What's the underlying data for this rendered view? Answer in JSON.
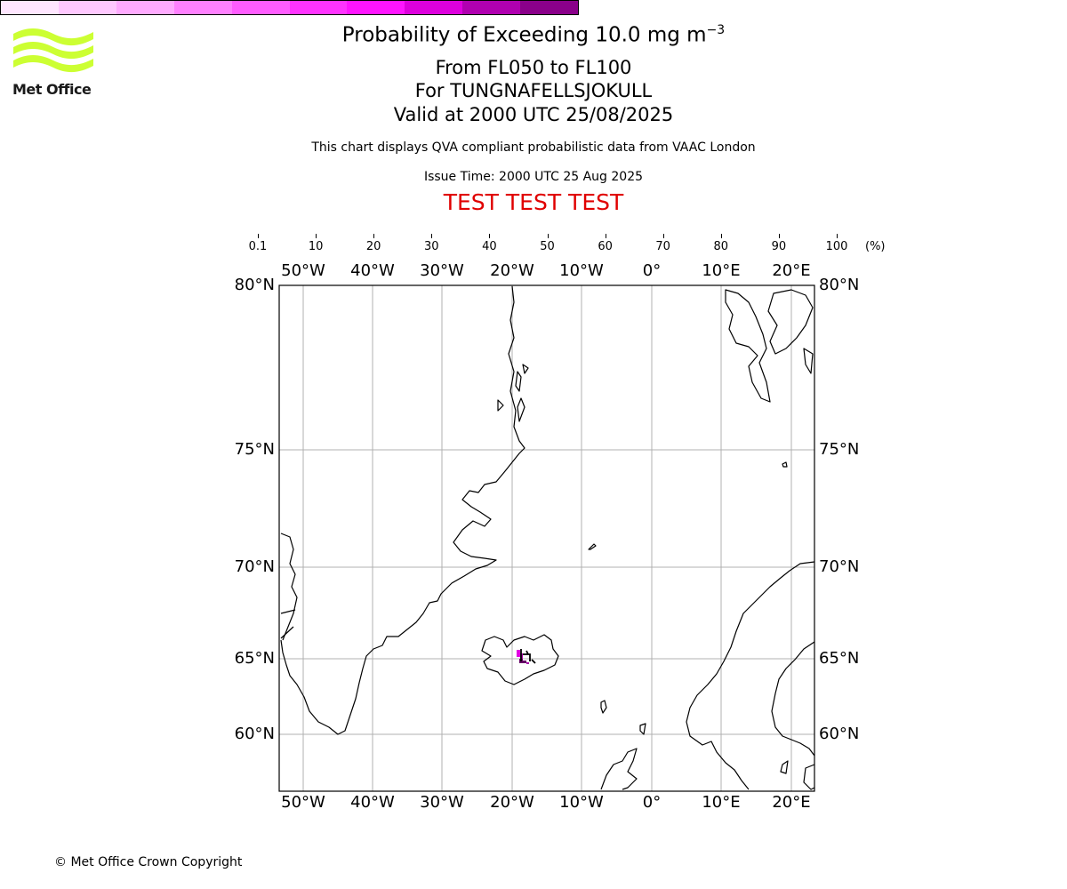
{
  "header": {
    "title_prefix": "Probability of Exceeding 10.0 mg m",
    "title_exponent": "−3",
    "levels": "From FL050 to FL100",
    "volcano": "For TUNGNAFELLSJOKULL",
    "valid": "Valid at 2000 UTC 25/08/2025",
    "subtitle": "This chart displays QVA compliant probabilistic data from VAAC London",
    "issue_time": "Issue Time: 2000 UTC 25 Aug 2025",
    "banner": "TEST TEST TEST"
  },
  "logo": {
    "text": "Met Office",
    "icon": "met-office-wave-logo",
    "color": "#ccff33"
  },
  "colorbar": {
    "labels": [
      "0.1",
      "10",
      "20",
      "30",
      "40",
      "50",
      "60",
      "70",
      "80",
      "90",
      "100"
    ],
    "unit": "(%)",
    "colors": [
      "#ffe6ff",
      "#ffc8ff",
      "#ffaaff",
      "#ff80ff",
      "#ff5cff",
      "#ff33ff",
      "#ff14ff",
      "#dd00dd",
      "#b000b0",
      "#8a008a",
      "#5c005c"
    ]
  },
  "map": {
    "longitude_labels": [
      "50°W",
      "40°W",
      "30°W",
      "20°W",
      "10°W",
      "0°",
      "10°E",
      "20°E"
    ],
    "latitude_labels": [
      "80°N",
      "75°N",
      "70°N",
      "65°N",
      "60°N"
    ],
    "ash_colors": [
      "#e000e0",
      "#aa00aa",
      "#660066"
    ]
  },
  "footer": {
    "copyright": "© Met Office Crown Copyright"
  }
}
